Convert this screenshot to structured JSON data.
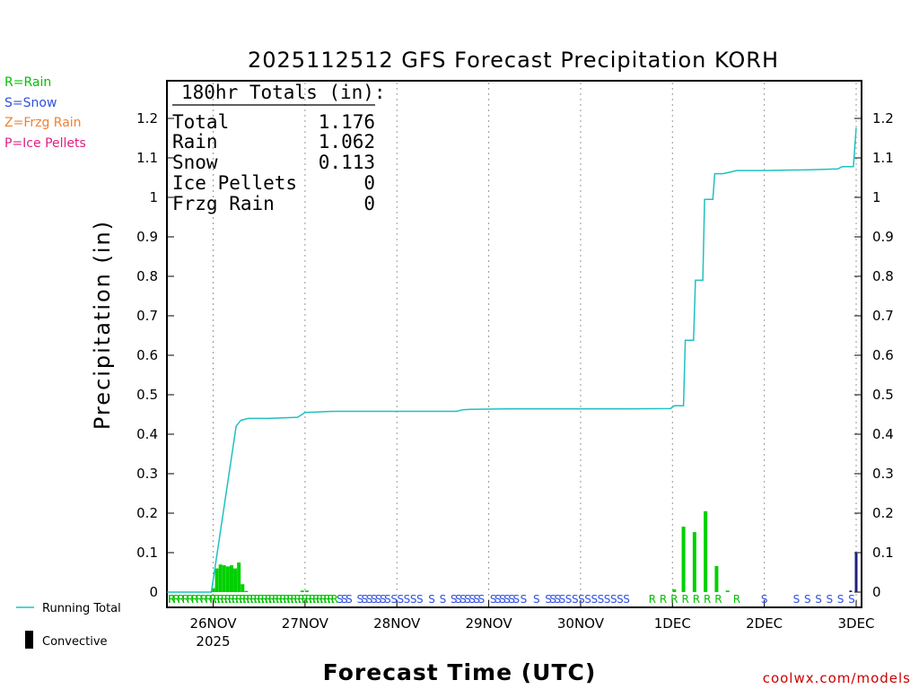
{
  "chart_data": {
    "type": "bar",
    "title": "2025112512 GFS Forecast Precipitation KORH",
    "xlabel": "Forecast Time (UTC)",
    "ylabel": "Precipitation (in)",
    "ylim": [
      0,
      1.3
    ],
    "yticks": [
      "0",
      "0.1",
      "0.2",
      "0.3",
      "0.4",
      "0.5",
      "0.6",
      "0.7",
      "0.8",
      "0.9",
      "1",
      "1.1",
      "1.2"
    ],
    "xlim_days": [
      -0.5,
      7
    ],
    "xticks": [
      {
        "day": 0,
        "label": "26NOV",
        "sublabel": "2025"
      },
      {
        "day": 1,
        "label": "27NOV"
      },
      {
        "day": 2,
        "label": "28NOV"
      },
      {
        "day": 3,
        "label": "29NOV"
      },
      {
        "day": 4,
        "label": "30NOV"
      },
      {
        "day": 5,
        "label": "1DEC"
      },
      {
        "day": 6,
        "label": "2DEC"
      },
      {
        "day": 7,
        "label": "3DEC"
      }
    ],
    "series": [
      {
        "name": "Running Total",
        "kind": "line",
        "color": "#20c0c0",
        "points": [
          [
            -0.5,
            0
          ],
          [
            -0.02,
            0
          ],
          [
            0.25,
            0.42
          ],
          [
            0.3,
            0.435
          ],
          [
            0.38,
            0.44
          ],
          [
            0.6,
            0.44
          ],
          [
            0.92,
            0.443
          ],
          [
            1.0,
            0.455
          ],
          [
            1.1,
            0.456
          ],
          [
            1.3,
            0.458
          ],
          [
            2.0,
            0.458
          ],
          [
            2.65,
            0.458
          ],
          [
            2.72,
            0.462
          ],
          [
            2.8,
            0.463
          ],
          [
            3.2,
            0.464
          ],
          [
            4.5,
            0.464
          ],
          [
            4.98,
            0.465
          ],
          [
            5.02,
            0.472
          ],
          [
            5.12,
            0.472
          ],
          [
            5.14,
            0.638
          ],
          [
            5.23,
            0.638
          ],
          [
            5.25,
            0.79
          ],
          [
            5.33,
            0.79
          ],
          [
            5.35,
            0.995
          ],
          [
            5.44,
            0.995
          ],
          [
            5.46,
            1.06
          ],
          [
            5.55,
            1.06
          ],
          [
            5.7,
            1.068
          ],
          [
            6.0,
            1.068
          ],
          [
            6.5,
            1.07
          ],
          [
            6.8,
            1.072
          ],
          [
            6.85,
            1.078
          ],
          [
            6.97,
            1.078
          ],
          [
            7.0,
            1.176
          ]
        ]
      },
      {
        "name": "Convective",
        "kind": "bar",
        "color": "#000000",
        "bars": [
          [
            6.94,
            0.004
          ],
          [
            7.0,
            0.1
          ]
        ]
      },
      {
        "name": "Rain",
        "kind": "bar",
        "color": "#00d000",
        "bars": [
          [
            0.0,
            0.01
          ],
          [
            0.04,
            0.06
          ],
          [
            0.08,
            0.07
          ],
          [
            0.12,
            0.068
          ],
          [
            0.16,
            0.065
          ],
          [
            0.2,
            0.068
          ],
          [
            0.24,
            0.06
          ],
          [
            0.28,
            0.075
          ],
          [
            0.32,
            0.02
          ],
          [
            0.36,
            0.003
          ],
          [
            0.97,
            0.004
          ],
          [
            1.02,
            0.004
          ],
          [
            5.02,
            0.007
          ],
          [
            5.12,
            0.166
          ],
          [
            5.24,
            0.152
          ],
          [
            5.36,
            0.205
          ],
          [
            5.48,
            0.066
          ],
          [
            5.6,
            0.004
          ]
        ]
      }
    ],
    "ptype_legend": [
      {
        "code": "R",
        "label": "R=Rain",
        "color": "#00c000"
      },
      {
        "code": "S",
        "label": "S=Snow",
        "color": "#3050e0"
      },
      {
        "code": "Z",
        "label": "Z=Frzg Rain",
        "color": "#f08030"
      },
      {
        "code": "P",
        "label": "P=Ice Pellets",
        "color": "#e02080"
      }
    ],
    "ptype_strip": [
      {
        "start": -0.5,
        "end": 0.0,
        "step": 0.05,
        "code": "R"
      },
      {
        "start": 0.0,
        "end": 0.6,
        "step": 0.04,
        "code": "R"
      },
      {
        "start": 0.6,
        "end": 1.35,
        "step": 0.04,
        "code": "R"
      },
      {
        "start": 1.38,
        "end": 1.5,
        "step": 0.05,
        "code": "S"
      },
      {
        "start": 1.6,
        "end": 1.85,
        "step": 0.05,
        "code": "S"
      },
      {
        "start": 1.9,
        "end": 2.25,
        "step": 0.07,
        "code": "S"
      },
      {
        "start": 2.38,
        "end": 2.42,
        "step": 0.05,
        "code": "S"
      },
      {
        "start": 2.5,
        "end": 2.55,
        "step": 0.06,
        "code": "S"
      },
      {
        "start": 2.62,
        "end": 2.95,
        "step": 0.05,
        "code": "S"
      },
      {
        "start": 3.05,
        "end": 3.3,
        "step": 0.05,
        "code": "S"
      },
      {
        "start": 3.38,
        "end": 3.42,
        "step": 0.05,
        "code": "S"
      },
      {
        "start": 3.52,
        "end": 3.56,
        "step": 0.05,
        "code": "S"
      },
      {
        "start": 3.65,
        "end": 3.75,
        "step": 0.05,
        "code": "S"
      },
      {
        "start": 3.8,
        "end": 4.55,
        "step": 0.07,
        "code": "S"
      },
      {
        "start": 4.78,
        "end": 5.55,
        "step": 0.12,
        "code": "R"
      },
      {
        "start": 5.7,
        "end": 5.72,
        "step": 0.12,
        "code": "R"
      },
      {
        "start": 6.0,
        "end": 6.02,
        "step": 0.12,
        "code": "S"
      },
      {
        "start": 6.35,
        "end": 7.0,
        "step": 0.12,
        "code": "S"
      }
    ],
    "totals_box": {
      "header": "180hr Totals (in):",
      "rows": [
        {
          "label": "Total",
          "value": "1.176"
        },
        {
          "label": "Rain",
          "value": "1.062"
        },
        {
          "label": "Snow",
          "value": "0.113"
        },
        {
          "label": "Ice Pellets",
          "value": "0"
        },
        {
          "label": "Frzg Rain",
          "value": "0"
        }
      ]
    }
  },
  "legend": {
    "running_total": "Running Total",
    "convective": "Convective"
  },
  "credit": "coolwx.com/models"
}
